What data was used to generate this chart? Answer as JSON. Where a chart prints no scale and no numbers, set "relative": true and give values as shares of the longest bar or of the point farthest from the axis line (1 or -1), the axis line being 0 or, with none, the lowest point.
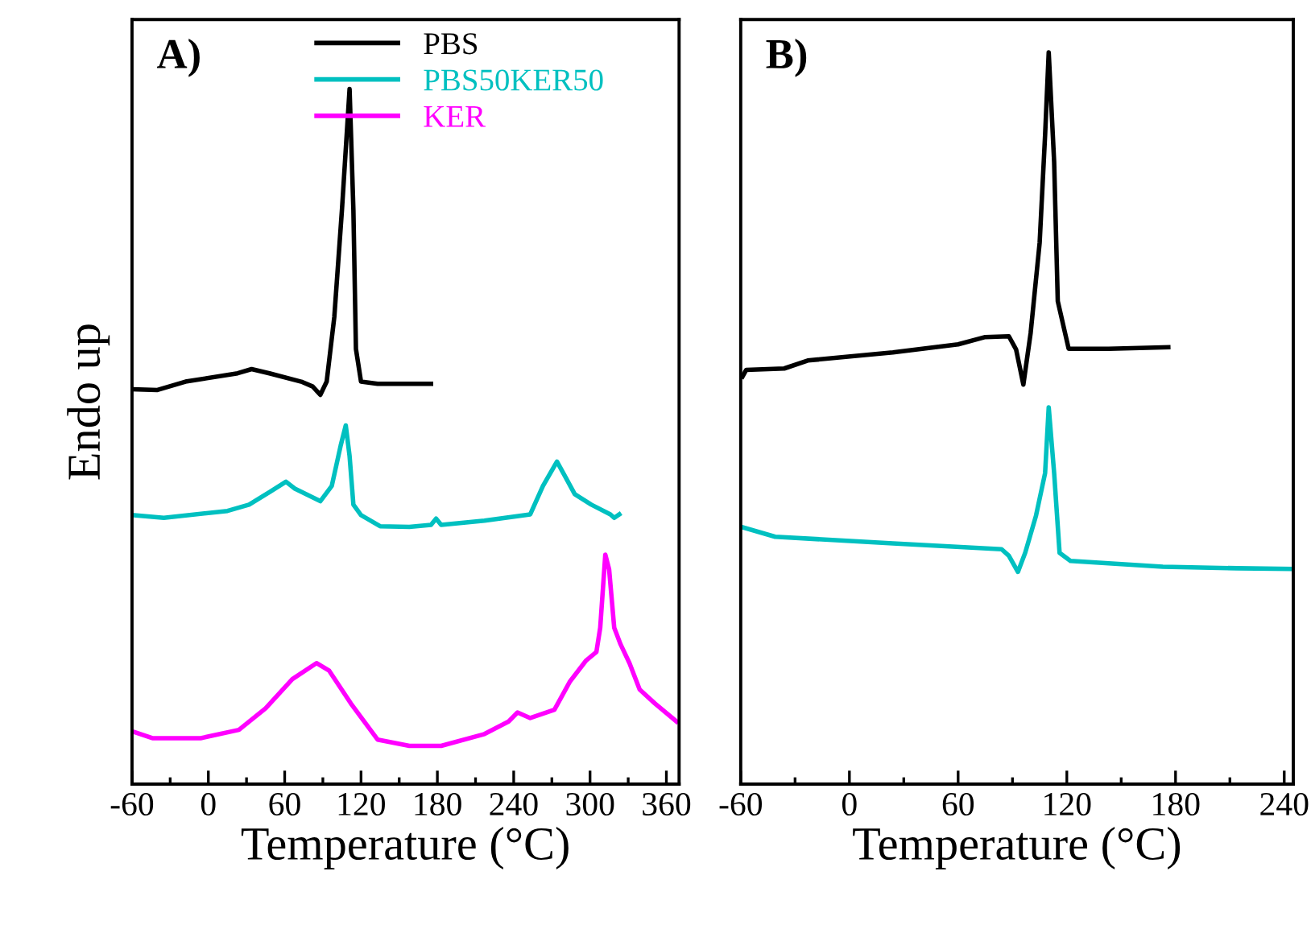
{
  "chart_data": [
    {
      "type": "line",
      "relative": true,
      "xlabel": "Temperature (°C)",
      "ylabel": "Endo up",
      "annotations": [
        "A)"
      ],
      "xlim": [
        -60,
        370
      ],
      "xticks": [
        -60,
        0,
        60,
        120,
        180,
        240,
        300,
        360
      ],
      "tick_labels": "x",
      "legend": "top",
      "line_style": "solid",
      "series": [
        {
          "name": "PBS",
          "color": "#000000",
          "x": [
            -60,
            -40,
            -18,
            23,
            34,
            48,
            73,
            82,
            88,
            93,
            99,
            105,
            111,
            114,
            116,
            120,
            133,
            175
          ],
          "values": [
            0.568,
            0.567,
            0.579,
            0.591,
            0.597,
            0.591,
            0.579,
            0.572,
            0.56,
            0.579,
            0.672,
            0.826,
            1.0,
            0.826,
            0.626,
            0.579,
            0.576,
            0.576
          ]
        },
        {
          "name": "PBS50KER50",
          "color": "#00c0c0",
          "x": [
            -60,
            -35,
            15,
            32,
            49,
            61,
            68,
            78,
            88,
            97,
            104,
            108,
            111,
            114,
            120,
            135,
            158,
            175,
            179,
            183,
            217,
            253,
            263,
            274,
            280,
            288,
            301,
            316,
            319,
            323
          ],
          "values": [
            0.387,
            0.383,
            0.393,
            0.402,
            0.421,
            0.435,
            0.425,
            0.416,
            0.407,
            0.429,
            0.487,
            0.516,
            0.472,
            0.402,
            0.387,
            0.371,
            0.37,
            0.373,
            0.382,
            0.373,
            0.379,
            0.388,
            0.429,
            0.464,
            0.444,
            0.417,
            0.402,
            0.388,
            0.383,
            0.388
          ]
        },
        {
          "name": "KER",
          "color": "#ff00ff",
          "x": [
            -60,
            -44,
            -6,
            24,
            45,
            66,
            85,
            95,
            112,
            133,
            158,
            183,
            217,
            236,
            243,
            253,
            272,
            284,
            297,
            305,
            308,
            312,
            315,
            319,
            324,
            331,
            339,
            351,
            368
          ],
          "values": [
            0.076,
            0.066,
            0.066,
            0.078,
            0.109,
            0.151,
            0.174,
            0.163,
            0.116,
            0.064,
            0.055,
            0.055,
            0.072,
            0.09,
            0.103,
            0.095,
            0.107,
            0.147,
            0.178,
            0.19,
            0.225,
            0.33,
            0.309,
            0.225,
            0.201,
            0.174,
            0.136,
            0.116,
            0.09
          ]
        }
      ]
    },
    {
      "type": "line",
      "relative": true,
      "xlabel": "Temperature (°C)",
      "annotations": [
        "B)"
      ],
      "xlim": [
        -60,
        245
      ],
      "xticks": [
        -60,
        0,
        60,
        120,
        180,
        240
      ],
      "tick_labels": "x",
      "line_style": "solid",
      "series": [
        {
          "color": "#000000",
          "x": [
            -59,
            -57,
            -36,
            -23,
            24,
            60,
            75,
            88,
            92,
            96,
            100,
            105,
            108,
            110,
            113,
            115,
            121,
            143,
            176
          ],
          "values": [
            0.557,
            0.566,
            0.568,
            0.579,
            0.59,
            0.601,
            0.611,
            0.612,
            0.594,
            0.546,
            0.616,
            0.74,
            0.887,
            1.0,
            0.85,
            0.66,
            0.595,
            0.595,
            0.597
          ]
        },
        {
          "color": "#00c0c0",
          "x": [
            -59,
            -41,
            24,
            84,
            88,
            93,
            97,
            103,
            108,
            110,
            113,
            116,
            122,
            173,
            214,
            244
          ],
          "values": [
            0.351,
            0.338,
            0.329,
            0.321,
            0.312,
            0.29,
            0.316,
            0.367,
            0.425,
            0.515,
            0.425,
            0.316,
            0.305,
            0.297,
            0.295,
            0.294
          ]
        }
      ]
    }
  ]
}
